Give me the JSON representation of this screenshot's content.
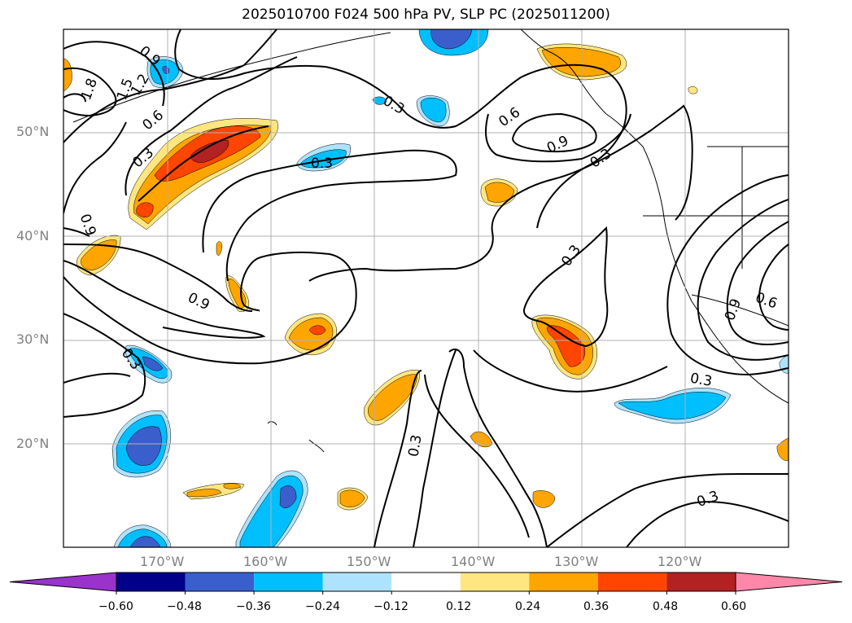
{
  "title": "2025010700 F024 500 hPa PV, SLP PC (2025011200)",
  "latitude_labels": [
    "50°N",
    "40°N",
    "30°N",
    "20°N"
  ],
  "longitude_labels": [
    "170°W",
    "160°W",
    "150°W",
    "140°W",
    "130°W",
    "120°W"
  ],
  "contour_labels": [
    "0.9",
    "1.8",
    "1.5",
    "1.2",
    "0.6",
    "0.3",
    "0.3",
    "0.6",
    "0.9",
    "0.3",
    "0.9",
    "0.3",
    "0.9",
    "0.3",
    "0.3",
    "0.6",
    "0.9",
    "0.3",
    "0.3",
    "0.3"
  ],
  "colorbar": {
    "tick_labels": [
      "−0.60",
      "−0.48",
      "−0.36",
      "−0.24",
      "−0.12",
      "0.12",
      "0.24",
      "0.36",
      "0.48",
      "0.60"
    ],
    "colors": [
      "#9933cc",
      "#00008b",
      "#3a5fcd",
      "#00bfff",
      "#aee3ff",
      "#ffffff",
      "#ffe680",
      "#ffa500",
      "#ff4500",
      "#b22222",
      "#ff88aa"
    ]
  },
  "colors": {
    "contour": "#000000",
    "grid": "#b0b0b0",
    "axis_label": "#808080"
  }
}
